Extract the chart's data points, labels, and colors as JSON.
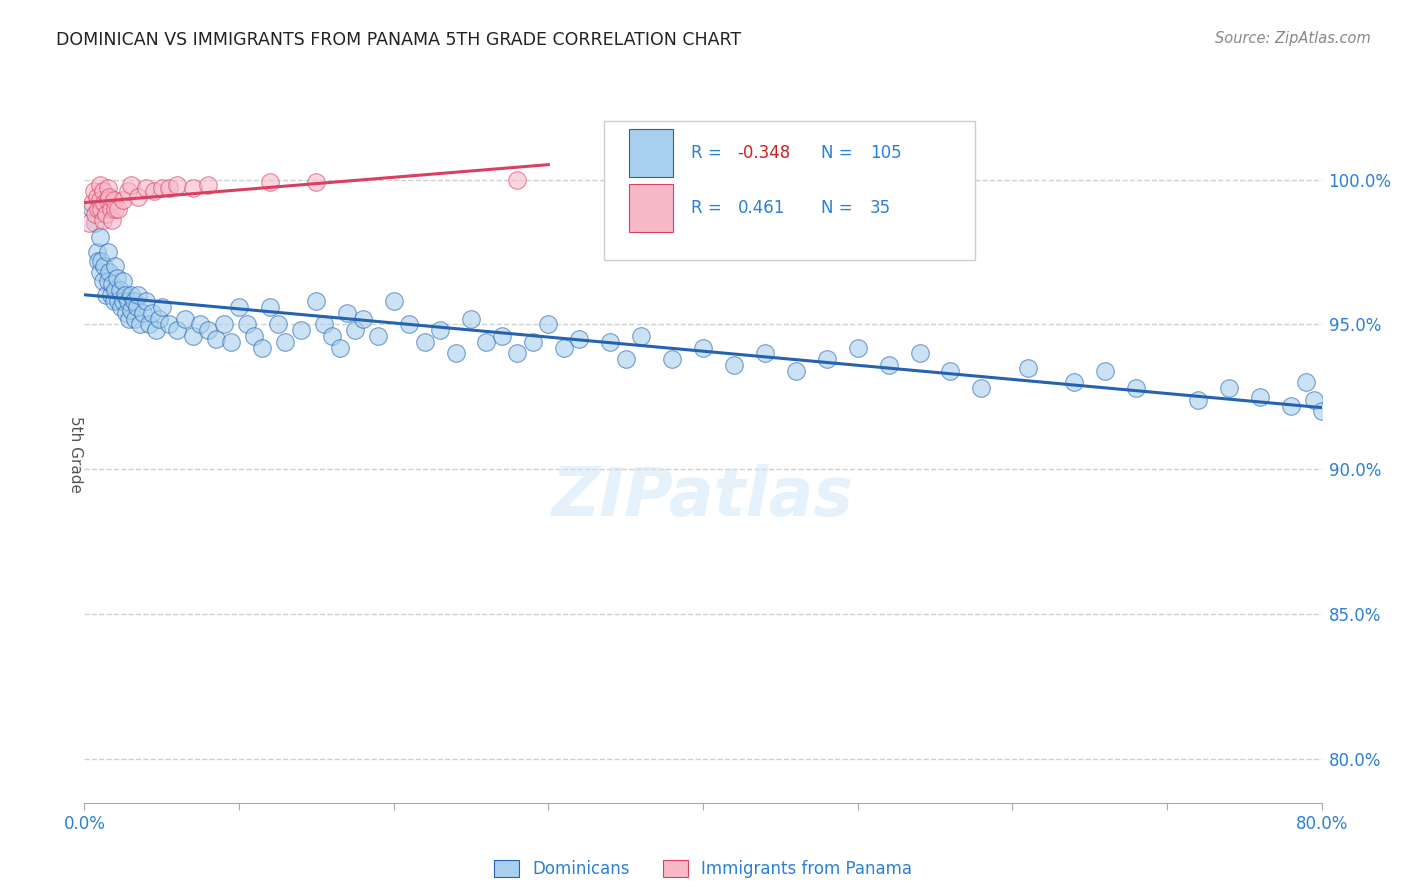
{
  "title": "DOMINICAN VS IMMIGRANTS FROM PANAMA 5TH GRADE CORRELATION CHART",
  "source": "Source: ZipAtlas.com",
  "ylabel": "5th Grade",
  "watermark": "ZIPatlas",
  "legend_blue_r": "-0.348",
  "legend_blue_n": "105",
  "legend_pink_r": "0.461",
  "legend_pink_n": "35",
  "blue_color": "#a8d0ee",
  "pink_color": "#f7b8c8",
  "blue_line_color": "#2563b0",
  "pink_line_color": "#d94060",
  "ytick_labels": [
    "100.0%",
    "95.0%",
    "90.0%",
    "85.0%",
    "80.0%"
  ],
  "ytick_values": [
    1.0,
    0.95,
    0.9,
    0.85,
    0.8
  ],
  "xlim": [
    0.0,
    0.8
  ],
  "ylim": [
    0.785,
    1.025
  ],
  "blue_scatter_x": [
    0.005,
    0.007,
    0.008,
    0.009,
    0.01,
    0.01,
    0.011,
    0.012,
    0.013,
    0.014,
    0.015,
    0.015,
    0.016,
    0.017,
    0.018,
    0.019,
    0.02,
    0.02,
    0.021,
    0.022,
    0.023,
    0.024,
    0.025,
    0.025,
    0.026,
    0.027,
    0.028,
    0.029,
    0.03,
    0.03,
    0.032,
    0.033,
    0.034,
    0.035,
    0.036,
    0.038,
    0.04,
    0.042,
    0.044,
    0.046,
    0.048,
    0.05,
    0.055,
    0.06,
    0.065,
    0.07,
    0.075,
    0.08,
    0.085,
    0.09,
    0.095,
    0.1,
    0.105,
    0.11,
    0.115,
    0.12,
    0.125,
    0.13,
    0.14,
    0.15,
    0.155,
    0.16,
    0.165,
    0.17,
    0.175,
    0.18,
    0.19,
    0.2,
    0.21,
    0.22,
    0.23,
    0.24,
    0.25,
    0.26,
    0.27,
    0.28,
    0.29,
    0.3,
    0.31,
    0.32,
    0.34,
    0.35,
    0.36,
    0.38,
    0.4,
    0.42,
    0.44,
    0.46,
    0.48,
    0.5,
    0.52,
    0.54,
    0.56,
    0.58,
    0.61,
    0.64,
    0.66,
    0.68,
    0.72,
    0.74,
    0.76,
    0.78,
    0.79,
    0.795,
    0.8
  ],
  "blue_scatter_y": [
    0.99,
    0.985,
    0.975,
    0.972,
    0.98,
    0.968,
    0.972,
    0.965,
    0.97,
    0.96,
    0.975,
    0.965,
    0.968,
    0.96,
    0.964,
    0.958,
    0.97,
    0.962,
    0.966,
    0.958,
    0.962,
    0.956,
    0.965,
    0.958,
    0.96,
    0.954,
    0.958,
    0.952,
    0.96,
    0.955,
    0.958,
    0.952,
    0.956,
    0.96,
    0.95,
    0.954,
    0.958,
    0.95,
    0.954,
    0.948,
    0.952,
    0.956,
    0.95,
    0.948,
    0.952,
    0.946,
    0.95,
    0.948,
    0.945,
    0.95,
    0.944,
    0.956,
    0.95,
    0.946,
    0.942,
    0.956,
    0.95,
    0.944,
    0.948,
    0.958,
    0.95,
    0.946,
    0.942,
    0.954,
    0.948,
    0.952,
    0.946,
    0.958,
    0.95,
    0.944,
    0.948,
    0.94,
    0.952,
    0.944,
    0.946,
    0.94,
    0.944,
    0.95,
    0.942,
    0.945,
    0.944,
    0.938,
    0.946,
    0.938,
    0.942,
    0.936,
    0.94,
    0.934,
    0.938,
    0.942,
    0.936,
    0.94,
    0.934,
    0.928,
    0.935,
    0.93,
    0.934,
    0.928,
    0.924,
    0.928,
    0.925,
    0.922,
    0.93,
    0.924,
    0.92
  ],
  "pink_scatter_x": [
    0.003,
    0.005,
    0.006,
    0.007,
    0.008,
    0.009,
    0.01,
    0.01,
    0.011,
    0.012,
    0.012,
    0.013,
    0.014,
    0.015,
    0.015,
    0.016,
    0.017,
    0.018,
    0.019,
    0.02,
    0.022,
    0.025,
    0.028,
    0.03,
    0.035,
    0.04,
    0.045,
    0.05,
    0.055,
    0.06,
    0.07,
    0.08,
    0.12,
    0.15,
    0.28
  ],
  "pink_scatter_y": [
    0.985,
    0.992,
    0.996,
    0.988,
    0.994,
    0.99,
    0.998,
    0.993,
    0.99,
    0.996,
    0.986,
    0.992,
    0.988,
    0.997,
    0.993,
    0.994,
    0.99,
    0.986,
    0.993,
    0.99,
    0.99,
    0.993,
    0.996,
    0.998,
    0.994,
    0.997,
    0.996,
    0.997,
    0.997,
    0.998,
    0.997,
    0.998,
    0.999,
    0.999,
    1.0
  ],
  "title_color": "#222222",
  "source_color": "#888888",
  "ylabel_color": "#555555",
  "ytick_color": "#2980d9",
  "xtick_color": "#2980d9",
  "grid_color": "#d0d0d0",
  "background_color": "#ffffff"
}
